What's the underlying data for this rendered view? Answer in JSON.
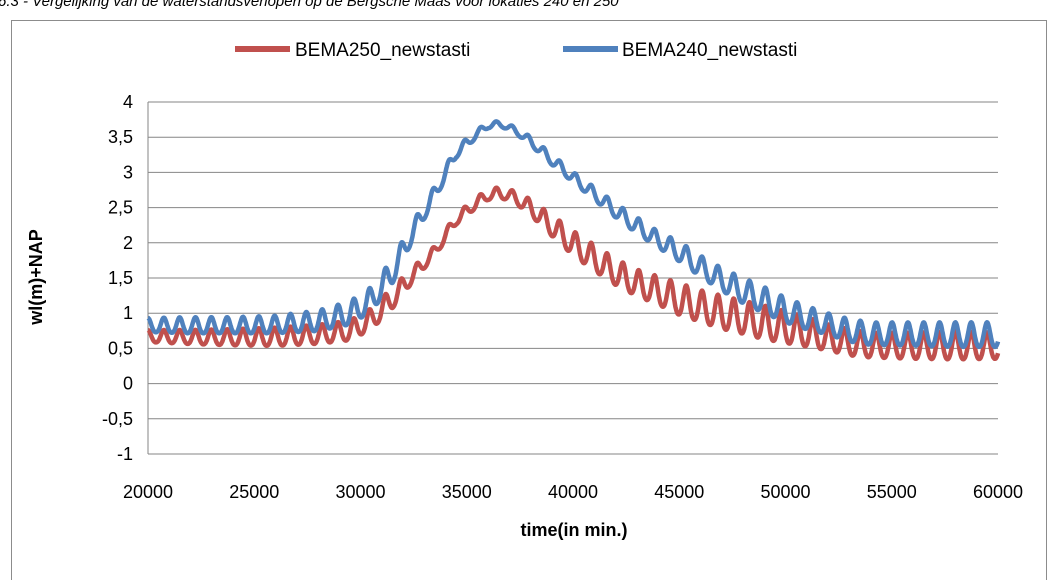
{
  "caption": "6.3 - Vergelijking van de waterstandsverlopen op de Bergsche Maas voor lokaties 240 en 250",
  "chart_data": {
    "type": "line",
    "title": "",
    "xlabel": "time(in min.)",
    "ylabel": "wl(m)+NAP",
    "xlim": [
      20000,
      60000
    ],
    "ylim": [
      -1,
      4
    ],
    "x_ticks": [
      20000,
      25000,
      30000,
      35000,
      40000,
      45000,
      50000,
      55000,
      60000
    ],
    "x_tick_labels": [
      "20000",
      "25000",
      "30000",
      "35000",
      "40000",
      "45000",
      "50000",
      "55000",
      "60000"
    ],
    "y_ticks": [
      -1,
      -0.5,
      0,
      0.5,
      1,
      1.5,
      2,
      2.5,
      3,
      3.5,
      4
    ],
    "y_tick_labels": [
      "-1",
      "-0,5",
      "0",
      "0,5",
      "1",
      "1,5",
      "2",
      "2,5",
      "3",
      "3,5",
      "4"
    ],
    "grid": "horizontal",
    "legend_position": "top",
    "series": [
      {
        "name": "BEMA250_newstasti",
        "color": "#c0504d",
        "tidal_period_min": 745,
        "x": [
          20000,
          22000,
          24000,
          26000,
          28000,
          29500,
          30500,
          31500,
          32500,
          33500,
          34500,
          35500,
          36000,
          36500,
          37000,
          37500,
          38000,
          39000,
          40000,
          41000,
          42000,
          43000,
          44000,
          45000,
          46000,
          47000,
          48000,
          49000,
          50000,
          51000,
          52000,
          53000,
          54000,
          56000,
          58000,
          60000
        ],
        "upper": [
          0.75,
          0.75,
          0.76,
          0.78,
          0.82,
          0.88,
          1.05,
          1.35,
          1.65,
          1.95,
          2.4,
          2.65,
          2.75,
          2.78,
          2.75,
          2.7,
          2.6,
          2.38,
          2.15,
          1.95,
          1.75,
          1.6,
          1.5,
          1.4,
          1.3,
          1.22,
          1.15,
          1.08,
          1.0,
          0.92,
          0.82,
          0.75,
          0.7,
          0.7,
          0.72,
          0.7
        ],
        "lower": [
          0.58,
          0.55,
          0.53,
          0.52,
          0.55,
          0.6,
          0.75,
          1.05,
          1.45,
          1.8,
          2.25,
          2.5,
          2.6,
          2.62,
          2.6,
          2.5,
          2.38,
          2.08,
          1.8,
          1.58,
          1.38,
          1.22,
          1.1,
          0.95,
          0.85,
          0.75,
          0.68,
          0.6,
          0.55,
          0.5,
          0.45,
          0.38,
          0.35,
          0.33,
          0.32,
          0.33
        ]
      },
      {
        "name": "BEMA240_newstasti",
        "color": "#4f81bd",
        "tidal_period_min": 745,
        "x": [
          20000,
          22000,
          24000,
          26000,
          28000,
          29500,
          30500,
          31500,
          32500,
          33500,
          34500,
          35500,
          36000,
          36500,
          37000,
          37500,
          38000,
          39000,
          40000,
          41000,
          42000,
          43000,
          44000,
          45000,
          46000,
          47000,
          48000,
          49000,
          50000,
          51000,
          52000,
          53000,
          54000,
          56000,
          58000,
          60000
        ],
        "upper": [
          0.92,
          0.93,
          0.93,
          0.95,
          1.02,
          1.15,
          1.35,
          1.75,
          2.3,
          2.8,
          3.35,
          3.6,
          3.72,
          3.72,
          3.68,
          3.6,
          3.5,
          3.25,
          3.0,
          2.78,
          2.55,
          2.35,
          2.15,
          2.0,
          1.8,
          1.62,
          1.48,
          1.35,
          1.2,
          1.08,
          0.98,
          0.9,
          0.85,
          0.85,
          0.85,
          0.85
        ],
        "lower": [
          0.72,
          0.7,
          0.7,
          0.7,
          0.73,
          0.82,
          1.0,
          1.4,
          2.05,
          2.6,
          3.2,
          3.5,
          3.62,
          3.65,
          3.6,
          3.5,
          3.38,
          3.1,
          2.85,
          2.6,
          2.35,
          2.12,
          1.92,
          1.72,
          1.5,
          1.3,
          1.12,
          0.98,
          0.85,
          0.75,
          0.68,
          0.58,
          0.53,
          0.52,
          0.5,
          0.5
        ]
      }
    ]
  }
}
